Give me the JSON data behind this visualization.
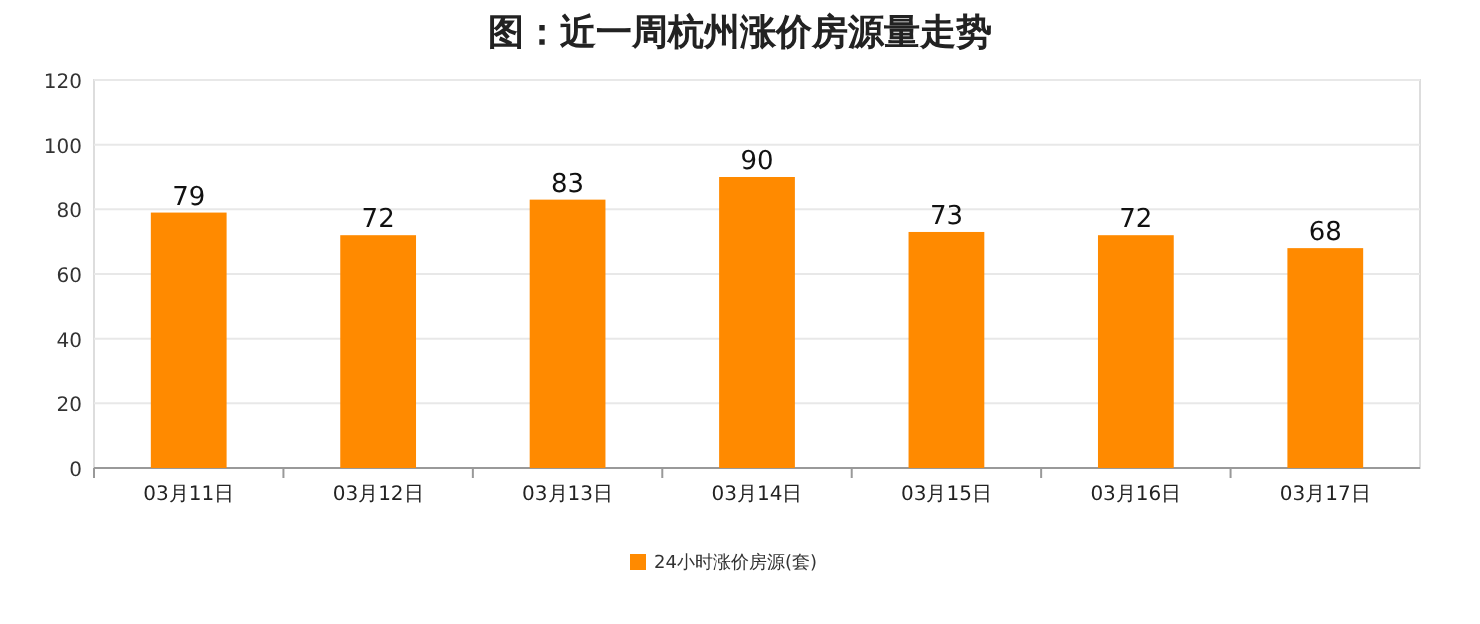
{
  "chart_data": {
    "type": "bar",
    "title": "图：近一周杭州涨价房源量走势",
    "categories": [
      "03月11日",
      "03月12日",
      "03月13日",
      "03月14日",
      "03月15日",
      "03月16日",
      "03月17日"
    ],
    "series": [
      {
        "name": "24小时涨价房源(套)",
        "color": "#ff8a00",
        "values": [
          79,
          72,
          83,
          90,
          73,
          72,
          68
        ]
      }
    ],
    "ylim": [
      0,
      120
    ],
    "yticks": [
      0,
      20,
      40,
      60,
      80,
      100,
      120
    ],
    "grid": "y",
    "legend": "bottom",
    "data_labels": true
  }
}
